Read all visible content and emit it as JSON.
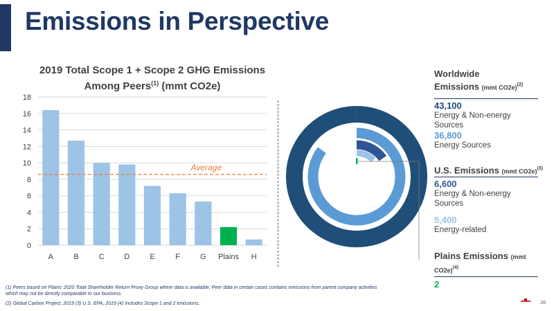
{
  "page": {
    "title": "Emissions in Perspective",
    "page_number": "26"
  },
  "chart_data": {
    "type": "bar",
    "title_line1": "2019 Total Scope 1 + Scope 2 GHG Emissions",
    "title_line2": "Among Peers",
    "title_sup": "(1)",
    "title_unit": " (mmt CO2e)",
    "categories": [
      "A",
      "B",
      "C",
      "D",
      "E",
      "F",
      "G",
      "Plains",
      "H"
    ],
    "values": [
      16.4,
      12.7,
      10.0,
      9.8,
      7.2,
      6.3,
      5.3,
      2.2,
      0.7
    ],
    "highlight_category": "Plains",
    "ylim": [
      0,
      18
    ],
    "yticks": [
      "0",
      "2",
      "4",
      "6",
      "8",
      "10",
      "12",
      "14",
      "16",
      "18"
    ],
    "grid": true,
    "average": {
      "label": "Average",
      "value": 8.6
    },
    "colors": {
      "bar": "#9dc3e6",
      "highlight": "#00b050",
      "average": "#ed7d31",
      "grid": "#d9d9d9"
    }
  },
  "donut": {
    "rings": [
      {
        "label": "Energy & Non-energy Sources",
        "value": 43100,
        "color": "#1f4e79"
      },
      {
        "label": "Energy Sources",
        "value": 36800,
        "color": "#5b9bd5"
      },
      {
        "label": "Energy & Non-energy Sources",
        "value": 6600,
        "color": "#2f5597"
      },
      {
        "label": "Energy-related",
        "value": 5400,
        "color": "#9dc3e6"
      },
      {
        "label": "Plains",
        "value": 2,
        "color": "#00b050"
      }
    ]
  },
  "worldwide": {
    "header": "Worldwide",
    "header2": "Emissions",
    "unit": "(mmt CO2e)",
    "sup": "(2)",
    "total": "43,100",
    "total_label": "Energy & Non-energy Sources",
    "energy": "36,800",
    "energy_label": "Energy Sources"
  },
  "us": {
    "header": "U.S. Emissions",
    "unit": "(mmt CO2e)",
    "sup": "(3)",
    "total": "6,600",
    "total_label": "Energy & Non-energy Sources",
    "energy": "5,400",
    "energy_label": "Energy-related"
  },
  "plains": {
    "header": "Plains Emissions",
    "unit": "(mmt CO2e)",
    "sup": "(4)",
    "value": "2"
  },
  "footnotes": {
    "line1": "(1) Peers based on Plains' 2020 Total Shareholder Return Proxy Group where data is available; Peer data in certain cases contains emissions from parent company activities",
    "line2": "which may not be directly comparable to our business.",
    "line3": "(2) Global Carbon Project, 2019 (3) U.S. EPA, 2019 (4) Includes Scope 1 and 2 emissions."
  }
}
